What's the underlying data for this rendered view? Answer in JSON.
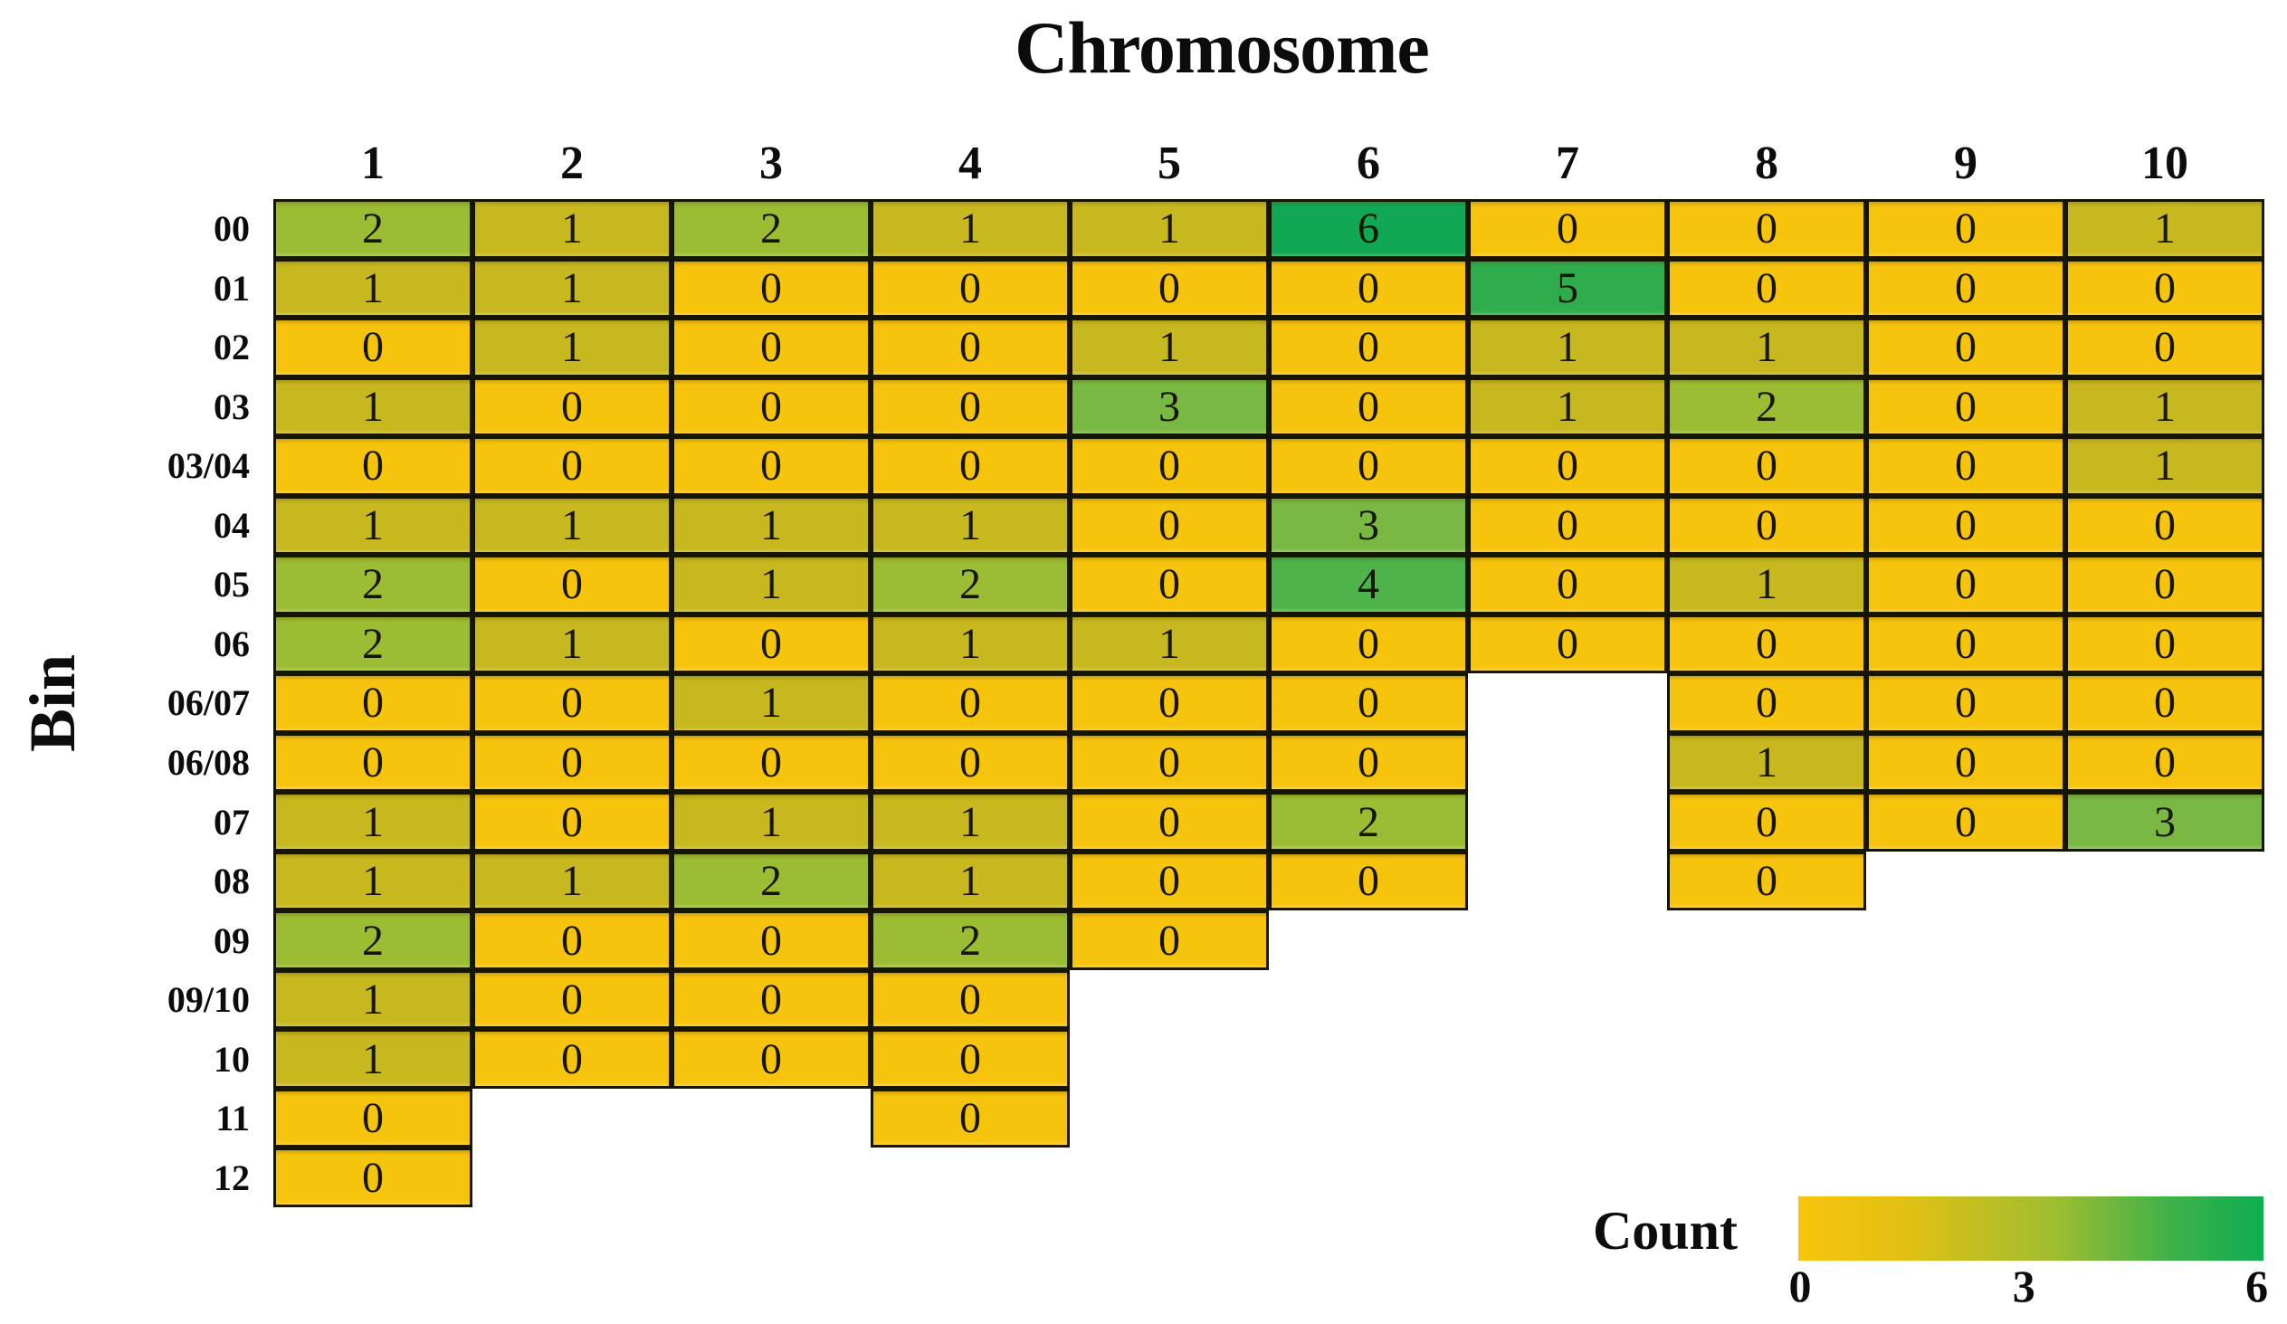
{
  "title": "Chromosome",
  "ylabel": "Bin",
  "legend": {
    "label": "Count",
    "ticks": [
      "0",
      "3",
      "6"
    ],
    "min": 0,
    "max": 6
  },
  "colors": {
    "background": "#FFFFFF",
    "grid_line": "#151500",
    "text": "#0C0C0C",
    "value_scale": {
      "0": "#F7C40D",
      "1": "#C8B81F",
      "2": "#9CBD33",
      "3": "#79B943",
      "4": "#4CB44A",
      "5": "#2FAD4D",
      "6": "#10A854"
    },
    "legend_gradient": [
      "#F7C40C",
      "#E3C013",
      "#9FBD30",
      "#3FB14A",
      "#0FAD51"
    ]
  },
  "chart_data": {
    "type": "heatmap",
    "xlabel": "Chromosome",
    "ylabel": "Bin",
    "legend_label": "Count",
    "color_range": [
      0,
      6
    ],
    "legend_tick_values": [
      0,
      3,
      6
    ],
    "x_categories": [
      "1",
      "2",
      "3",
      "4",
      "5",
      "6",
      "7",
      "8",
      "9",
      "10"
    ],
    "y_categories": [
      "00",
      "01",
      "02",
      "03",
      "03/04",
      "04",
      "05",
      "06",
      "06/07",
      "06/08",
      "07",
      "08",
      "09",
      "09/10",
      "10",
      "11",
      "12"
    ],
    "rows": [
      {
        "bin": "00",
        "values": [
          2,
          1,
          2,
          1,
          1,
          6,
          0,
          0,
          0,
          1
        ]
      },
      {
        "bin": "01",
        "values": [
          1,
          1,
          0,
          0,
          0,
          0,
          5,
          0,
          0,
          0
        ]
      },
      {
        "bin": "02",
        "values": [
          0,
          1,
          0,
          0,
          1,
          0,
          1,
          1,
          0,
          0
        ]
      },
      {
        "bin": "03",
        "values": [
          1,
          0,
          0,
          0,
          3,
          0,
          1,
          2,
          0,
          1
        ]
      },
      {
        "bin": "03/04",
        "values": [
          0,
          0,
          0,
          0,
          0,
          0,
          0,
          0,
          0,
          1
        ]
      },
      {
        "bin": "04",
        "values": [
          1,
          1,
          1,
          1,
          0,
          3,
          0,
          0,
          0,
          0
        ]
      },
      {
        "bin": "05",
        "values": [
          2,
          0,
          1,
          2,
          0,
          4,
          0,
          1,
          0,
          0
        ]
      },
      {
        "bin": "06",
        "values": [
          2,
          1,
          0,
          1,
          1,
          0,
          0,
          0,
          0,
          0
        ]
      },
      {
        "bin": "06/07",
        "values": [
          0,
          0,
          1,
          0,
          0,
          0,
          null,
          0,
          0,
          0
        ]
      },
      {
        "bin": "06/08",
        "values": [
          0,
          0,
          0,
          0,
          0,
          0,
          null,
          1,
          0,
          0
        ]
      },
      {
        "bin": "07",
        "values": [
          1,
          0,
          1,
          1,
          0,
          2,
          null,
          0,
          0,
          3
        ]
      },
      {
        "bin": "08",
        "values": [
          1,
          1,
          2,
          1,
          0,
          0,
          null,
          0,
          null,
          null
        ]
      },
      {
        "bin": "09",
        "values": [
          2,
          0,
          0,
          2,
          0,
          null,
          null,
          null,
          null,
          null
        ]
      },
      {
        "bin": "09/10",
        "values": [
          1,
          0,
          0,
          0,
          null,
          null,
          null,
          null,
          null,
          null
        ]
      },
      {
        "bin": "10",
        "values": [
          1,
          0,
          0,
          0,
          null,
          null,
          null,
          null,
          null,
          null
        ]
      },
      {
        "bin": "11",
        "values": [
          0,
          null,
          null,
          0,
          null,
          null,
          null,
          null,
          null,
          null
        ]
      },
      {
        "bin": "12",
        "values": [
          0,
          null,
          null,
          null,
          null,
          null,
          null,
          null,
          null,
          null
        ]
      }
    ]
  }
}
